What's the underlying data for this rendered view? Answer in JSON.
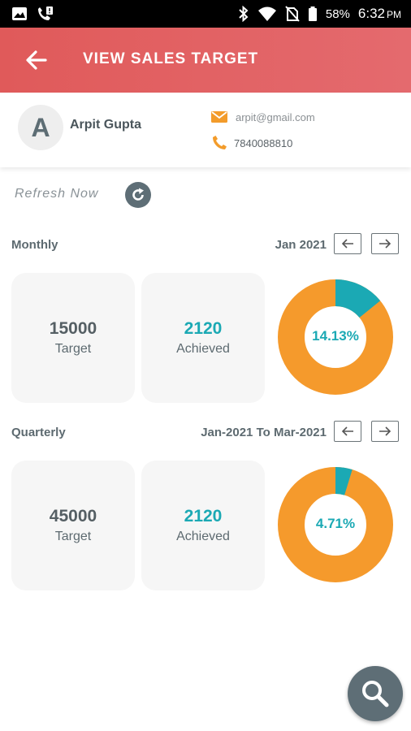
{
  "status_bar": {
    "battery_percent": "58%",
    "time": "6:32",
    "ampm": "PM",
    "icons": [
      "image-icon",
      "phone-alert-icon",
      "bluetooth-icon",
      "wifi-icon",
      "no-sim-icon",
      "battery-icon"
    ]
  },
  "app_bar": {
    "title": "VIEW SALES TARGET",
    "back_icon": "arrow-left-icon"
  },
  "profile": {
    "avatar_initial": "A",
    "name": "Arpit Gupta",
    "email": "arpit@gmail.com",
    "phone": "7840088810",
    "accent_color": "#f39c2b"
  },
  "refresh": {
    "label": "Refresh Now"
  },
  "monthly": {
    "label": "Monthly",
    "period": "Jan 2021",
    "target_value": "15000",
    "target_label": "Target",
    "achieved_value": "2120",
    "achieved_label": "Achieved",
    "percent_label": "14.13%",
    "percent": 14.13
  },
  "quarterly": {
    "label": "Quarterly",
    "period": "Jan-2021 To Mar-2021",
    "target_value": "45000",
    "target_label": "Target",
    "achieved_value": "2120",
    "achieved_label": "Achieved",
    "percent_label": "4.71%",
    "percent": 4.71
  },
  "colors": {
    "app_bar": "#e05a5a",
    "achieved": "#1ba9b4",
    "remaining": "#f59a2c",
    "fab": "#5e6e76"
  }
}
